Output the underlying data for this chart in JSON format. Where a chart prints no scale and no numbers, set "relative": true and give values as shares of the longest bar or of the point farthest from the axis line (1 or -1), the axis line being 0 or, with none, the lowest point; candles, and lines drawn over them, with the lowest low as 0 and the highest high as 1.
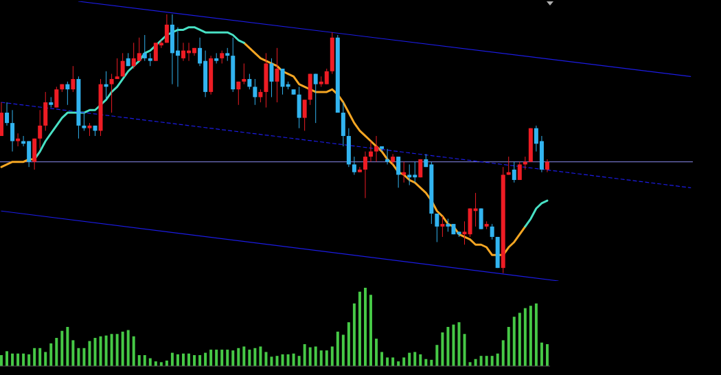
{
  "chart_data": [
    {
      "type": "candlestick",
      "relative": true,
      "categories": [
        null,
        null,
        null,
        null,
        null,
        null,
        null,
        null,
        null,
        null,
        null,
        null,
        null,
        null,
        null,
        null,
        null,
        null,
        null,
        null,
        null,
        null,
        null,
        null,
        null,
        null,
        null,
        null,
        null,
        null,
        null,
        null,
        null,
        null,
        null,
        null,
        null,
        null,
        null,
        null,
        null,
        null,
        null,
        null,
        null,
        null,
        null,
        null,
        null,
        null,
        null,
        null,
        null,
        null,
        null,
        null,
        null,
        null,
        null,
        null,
        null,
        null,
        null,
        null,
        null,
        null,
        null,
        null,
        null,
        null,
        null,
        null,
        null,
        null,
        null,
        null,
        null,
        null,
        null,
        null,
        null,
        null,
        null,
        null,
        null,
        null,
        null,
        null,
        null,
        null,
        null,
        null,
        null,
        null,
        null,
        null,
        null,
        null,
        null,
        null,
        null,
        null,
        null,
        null,
        null,
        null,
        null,
        null,
        null,
        null,
        null,
        null,
        null,
        null,
        null,
        null,
        null,
        null,
        null,
        null,
        null,
        null,
        null,
        null,
        null,
        null
      ],
      "ohlc": [
        [
          0.53,
          0.66,
          0.53,
          0.62
        ],
        [
          0.62,
          0.66,
          0.57,
          0.58
        ],
        [
          0.58,
          0.63,
          0.47,
          0.51
        ],
        [
          0.51,
          0.54,
          0.49,
          0.52
        ],
        [
          0.51,
          0.53,
          0.49,
          0.5
        ],
        [
          0.51,
          0.51,
          0.41,
          0.43
        ],
        [
          0.43,
          0.52,
          0.4,
          0.52
        ],
        [
          0.52,
          0.63,
          0.48,
          0.57
        ],
        [
          0.57,
          0.7,
          0.55,
          0.66
        ],
        [
          0.66,
          0.68,
          0.64,
          0.65
        ],
        [
          0.64,
          0.72,
          0.64,
          0.71
        ],
        [
          0.71,
          0.73,
          0.7,
          0.73
        ],
        [
          0.73,
          0.74,
          0.65,
          0.71
        ],
        [
          0.71,
          0.8,
          0.7,
          0.75
        ],
        [
          0.75,
          0.76,
          0.52,
          0.57
        ],
        [
          0.57,
          0.62,
          0.55,
          0.56
        ],
        [
          0.56,
          0.58,
          0.53,
          0.57
        ],
        [
          0.57,
          0.57,
          0.53,
          0.55
        ],
        [
          0.55,
          0.75,
          0.53,
          0.73
        ],
        [
          0.73,
          0.78,
          0.67,
          0.72
        ],
        [
          0.73,
          0.77,
          0.62,
          0.75
        ],
        [
          0.75,
          0.83,
          0.75,
          0.76
        ],
        [
          0.76,
          0.85,
          0.76,
          0.82
        ],
        [
          0.83,
          0.85,
          0.8,
          0.8
        ],
        [
          0.8,
          0.89,
          0.79,
          0.83
        ],
        [
          0.82,
          0.91,
          0.82,
          0.85
        ],
        [
          0.85,
          0.92,
          0.82,
          0.83
        ],
        [
          0.83,
          0.85,
          0.8,
          0.82
        ],
        [
          0.82,
          0.89,
          0.82,
          0.89
        ],
        [
          0.88,
          0.9,
          0.87,
          0.89
        ],
        [
          0.89,
          1,
          0.89,
          0.96
        ],
        [
          0.96,
          1,
          0.73,
          0.85
        ],
        [
          0.86,
          0.95,
          0.72,
          0.84
        ],
        [
          0.83,
          0.89,
          0.82,
          0.86
        ],
        [
          0.85,
          0.89,
          0.82,
          0.86
        ],
        [
          0.85,
          0.87,
          0.84,
          0.87
        ],
        [
          0.87,
          0.91,
          0.8,
          0.81
        ],
        [
          0.82,
          0.86,
          0.68,
          0.7
        ],
        [
          0.7,
          0.84,
          0.69,
          0.83
        ],
        [
          0.83,
          0.85,
          0.81,
          0.82
        ],
        [
          0.83,
          0.86,
          0.81,
          0.85
        ],
        [
          0.85,
          0.87,
          0.82,
          0.84
        ],
        [
          0.84,
          0.91,
          0.7,
          0.71
        ],
        [
          0.71,
          0.74,
          0.65,
          0.74
        ],
        [
          0.74,
          0.81,
          0.73,
          0.75
        ],
        [
          0.75,
          0.77,
          0.71,
          0.72
        ],
        [
          0.72,
          0.75,
          0.65,
          0.68
        ],
        [
          0.68,
          0.71,
          0.66,
          0.7
        ],
        [
          0.7,
          0.85,
          0.64,
          0.81
        ],
        [
          0.81,
          0.83,
          0.68,
          0.74
        ],
        [
          0.74,
          0.87,
          0.66,
          0.79
        ],
        [
          0.79,
          0.79,
          0.69,
          0.72
        ],
        [
          0.73,
          0.74,
          0.71,
          0.72
        ],
        [
          0.71,
          0.71,
          0.69,
          0.69
        ],
        [
          0.69,
          0.72,
          0.56,
          0.6
        ],
        [
          0.6,
          0.67,
          0.55,
          0.67
        ],
        [
          0.67,
          0.77,
          0.65,
          0.77
        ],
        [
          0.77,
          0.77,
          0.58,
          0.73
        ],
        [
          0.73,
          0.76,
          0.72,
          0.74
        ],
        [
          0.73,
          0.79,
          0.73,
          0.78
        ],
        [
          0.78,
          0.93,
          0.77,
          0.91
        ],
        [
          0.91,
          0.92,
          0.62,
          0.62
        ],
        [
          0.62,
          0.66,
          0.49,
          0.53
        ],
        [
          0.53,
          0.56,
          0.41,
          0.42
        ],
        [
          0.42,
          0.45,
          0.38,
          0.39
        ],
        [
          0.39,
          0.41,
          0.39,
          0.4
        ],
        [
          0.4,
          0.47,
          0.29,
          0.45
        ],
        [
          0.45,
          0.51,
          0.43,
          0.47
        ],
        [
          0.47,
          0.53,
          0.43,
          0.49
        ],
        [
          0.49,
          0.49,
          0.47,
          0.48
        ],
        [
          0.44,
          0.48,
          0.42,
          0.43
        ],
        [
          0.43,
          0.46,
          0.42,
          0.45
        ],
        [
          0.45,
          0.45,
          0.33,
          0.38
        ],
        [
          0.38,
          0.43,
          0.35,
          0.39
        ],
        [
          0.38,
          0.42,
          0.34,
          0.37
        ],
        [
          0.38,
          0.43,
          0.35,
          0.37
        ],
        [
          0.37,
          0.44,
          0.37,
          0.44
        ],
        [
          0.44,
          0.46,
          0.41,
          0.41
        ],
        [
          0.42,
          0.43,
          0.19,
          0.23
        ],
        [
          0.23,
          0.23,
          0.12,
          0.18
        ],
        [
          0.18,
          0.22,
          0.14,
          0.19
        ],
        [
          0.19,
          0.21,
          0.16,
          0.18
        ],
        [
          0.19,
          0.19,
          0.15,
          0.15
        ],
        [
          0.16,
          0.16,
          0.14,
          0.15
        ],
        [
          0.15,
          0.2,
          0.11,
          0.16
        ],
        [
          0.15,
          0.25,
          0.14,
          0.25
        ],
        [
          0.24,
          0.31,
          0.18,
          0.25
        ],
        [
          0.25,
          0.25,
          0.17,
          0.17
        ],
        [
          0.18,
          0.2,
          0.17,
          0.19
        ],
        [
          0.18,
          0.19,
          0.13,
          0.14
        ],
        [
          0.14,
          0.14,
          0.02,
          0.02
        ],
        [
          0.02,
          0.41,
          0,
          0.38
        ],
        [
          0.38,
          0.45,
          0.38,
          0.39
        ],
        [
          0.4,
          0.43,
          0.35,
          0.36
        ],
        [
          0.36,
          0.43,
          0.36,
          0.42
        ],
        [
          0.42,
          0.45,
          0.4,
          0.43
        ],
        [
          0.43,
          0.56,
          0.43,
          0.56
        ],
        [
          0.56,
          0.57,
          0.47,
          0.5
        ],
        [
          0.51,
          0.53,
          0.39,
          0.4
        ],
        [
          0.4,
          0.44,
          0.39,
          0.43
        ],
        null,
        null,
        null,
        null,
        null,
        null,
        null,
        null,
        null,
        null,
        null,
        null,
        null,
        null,
        null,
        null,
        null,
        null,
        null,
        null,
        null,
        null,
        null,
        null,
        null,
        null
      ],
      "colors": [
        "#ee1c24",
        "#32b4f0",
        "#32b4f0",
        "#ee1c24",
        "#32b4f0",
        "#32b4f0",
        "#ee1c24",
        "#ee1c24",
        "#ee1c24",
        "#32b4f0",
        "#ee1c24",
        "#ee1c24",
        "#32b4f0",
        "#ee1c24",
        "#32b4f0",
        "#32b4f0",
        "#ee1c24",
        "#32b4f0",
        "#ee1c24",
        "#32b4f0",
        "#ee1c24",
        "#ee1c24",
        "#ee1c24",
        "#32b4f0",
        "#ee1c24",
        "#ee1c24",
        "#32b4f0",
        "#32b4f0",
        "#ee1c24",
        "#ee1c24",
        "#ee1c24",
        "#32b4f0",
        "#32b4f0",
        "#ee1c24",
        "#ee1c24",
        "#ee1c24",
        "#32b4f0",
        "#32b4f0",
        "#ee1c24",
        "#32b4f0",
        "#ee1c24",
        "#32b4f0",
        "#32b4f0",
        "#ee1c24",
        "#ee1c24",
        "#32b4f0",
        "#32b4f0",
        "#ee1c24",
        "#ee1c24",
        "#32b4f0",
        "#ee1c24",
        "#32b4f0",
        "#32b4f0",
        "#32b4f0",
        "#32b4f0",
        "#ee1c24",
        "#ee1c24",
        "#32b4f0",
        "#ee1c24",
        "#ee1c24",
        "#ee1c24",
        "#32b4f0",
        "#32b4f0",
        "#32b4f0",
        "#32b4f0",
        "#ee1c24",
        "#ee1c24",
        "#ee1c24",
        "#ee1c24",
        "#32b4f0",
        "#32b4f0",
        "#ee1c24",
        "#32b4f0",
        "#ee1c24",
        "#32b4f0",
        "#32b4f0",
        "#ee1c24",
        "#32b4f0",
        "#32b4f0",
        "#32b4f0",
        "#ee1c24",
        "#32b4f0",
        "#32b4f0",
        "#32b4f0",
        "#ee1c24",
        "#ee1c24",
        "#ee1c24",
        "#32b4f0",
        "#ee1c24",
        "#32b4f0",
        "#32b4f0",
        "#ee1c24",
        "#ee1c24",
        "#32b4f0",
        "#ee1c24",
        "#ee1c24",
        "#ee1c24",
        "#32b4f0",
        "#32b4f0",
        "#ee1c24",
        null,
        null,
        null,
        null,
        null,
        null,
        null,
        null,
        null,
        null,
        null,
        null,
        null,
        null,
        null,
        null,
        null,
        null,
        null,
        null,
        null,
        null,
        null,
        null,
        null,
        null
      ],
      "series": [
        {
          "type": "line",
          "color": "#f5a623",
          "values": [
            0.41,
            0.42,
            0.43,
            0.43,
            0.43,
            0.44,
            0.44,
            null,
            null,
            null,
            null,
            null,
            null,
            null,
            null,
            null,
            null,
            null,
            null,
            null,
            null,
            null,
            null,
            null,
            null,
            null,
            null,
            null,
            null,
            null,
            null,
            null,
            null,
            null,
            null,
            null,
            null,
            null,
            null,
            null,
            null,
            null,
            null,
            null,
            0.89,
            0.87,
            0.85,
            0.83,
            0.82,
            0.81,
            0.8,
            0.78,
            0.77,
            0.76,
            0.73,
            0.72,
            0.71,
            0.7,
            0.7,
            0.7,
            0.71,
            0.69,
            0.66,
            0.62,
            0.58,
            0.55,
            0.53,
            0.51,
            0.49,
            0.47,
            0.44,
            0.42,
            0.39,
            0.38,
            0.36,
            0.35,
            0.33,
            0.31,
            0.28,
            0.24,
            0.22,
            0.19,
            0.18,
            0.15,
            0.14,
            0.13,
            0.11,
            0.11,
            0.1,
            0.07,
            0.07,
            0.07,
            0.1,
            0.12,
            0.15,
            0.18,
            null,
            null,
            null,
            null,
            null,
            null,
            null,
            null,
            null,
            null,
            null,
            null,
            null,
            null,
            null,
            null,
            null,
            null,
            null,
            null,
            null,
            null,
            null,
            null,
            null,
            null,
            null,
            null,
            null,
            null
          ]
        },
        {
          "type": "line",
          "color": "#48e0c4",
          "values": [
            null,
            null,
            null,
            null,
            null,
            null,
            0.44,
            0.47,
            0.51,
            0.54,
            0.57,
            0.6,
            0.62,
            0.62,
            0.62,
            0.62,
            0.63,
            0.63,
            0.65,
            0.67,
            0.7,
            0.72,
            0.75,
            0.78,
            0.8,
            0.82,
            0.85,
            0.86,
            0.88,
            0.9,
            0.92,
            0.93,
            0.94,
            0.94,
            0.95,
            0.95,
            0.94,
            0.93,
            0.93,
            0.93,
            0.93,
            0.93,
            0.92,
            0.9,
            0.89,
            null,
            null,
            null,
            null,
            null,
            null,
            null,
            null,
            null,
            null,
            null,
            null,
            null,
            null,
            null,
            null,
            null,
            null,
            null,
            null,
            null,
            null,
            null,
            null,
            null,
            null,
            null,
            null,
            null,
            null,
            null,
            null,
            null,
            null,
            null,
            null,
            null,
            null,
            null,
            null,
            null,
            null,
            null,
            null,
            null,
            null,
            null,
            null,
            null,
            null,
            0.18,
            0.21,
            0.25,
            0.27,
            0.28,
            null,
            null,
            null,
            null,
            null,
            null,
            null,
            null,
            null,
            null,
            null,
            null,
            null,
            null,
            null,
            null,
            null,
            null,
            null,
            null,
            null,
            null,
            null,
            null,
            null,
            null
          ]
        },
        {
          "type": "line",
          "color": "#1c1ce6",
          "values": [
            null,
            null,
            null,
            null,
            null,
            null,
            null,
            null,
            null,
            null,
            null,
            null,
            null,
            null,
            1.05,
            null,
            null,
            null,
            null,
            null,
            null,
            null,
            null,
            null,
            null,
            null,
            null,
            null,
            null,
            null,
            null,
            null,
            null,
            null,
            null,
            null,
            null,
            null,
            null,
            null,
            null,
            null,
            null,
            null,
            null,
            null,
            null,
            null,
            null,
            null,
            null,
            null,
            null,
            null,
            null,
            null,
            null,
            null,
            null,
            null,
            null,
            null,
            null,
            null,
            null,
            null,
            null,
            null,
            null,
            null,
            null,
            null,
            null,
            null,
            null,
            null,
            null,
            null,
            null,
            null,
            null,
            null,
            null,
            null,
            null,
            null,
            null,
            null,
            null,
            null,
            null,
            null,
            null,
            null,
            null,
            null,
            null,
            null,
            null,
            null,
            null,
            null,
            null,
            null,
            null,
            null,
            null,
            null,
            null,
            null,
            null,
            null,
            null,
            null,
            null,
            null,
            null,
            null,
            null,
            null,
            null,
            null,
            null,
            null,
            null,
            0.76
          ]
        },
        {
          "type": "line",
          "color": "#1c1ce6",
          "line_style": "dashed",
          "values": [
            0.66,
            null,
            null,
            null,
            null,
            null,
            null,
            null,
            null,
            null,
            null,
            null,
            null,
            null,
            null,
            null,
            null,
            null,
            null,
            null,
            null,
            null,
            null,
            null,
            null,
            null,
            null,
            null,
            null,
            null,
            null,
            null,
            null,
            null,
            null,
            null,
            null,
            null,
            null,
            null,
            null,
            null,
            null,
            null,
            null,
            null,
            null,
            null,
            null,
            null,
            null,
            null,
            null,
            null,
            null,
            null,
            null,
            null,
            null,
            null,
            null,
            null,
            null,
            null,
            null,
            null,
            null,
            null,
            null,
            null,
            null,
            null,
            null,
            null,
            null,
            null,
            null,
            null,
            null,
            null,
            null,
            null,
            null,
            null,
            null,
            null,
            null,
            null,
            null,
            null,
            null,
            null,
            null,
            null,
            null,
            null,
            null,
            null,
            null,
            null,
            null,
            null,
            null,
            null,
            null,
            null,
            null,
            null,
            null,
            null,
            null,
            null,
            null,
            null,
            null,
            null,
            null,
            null,
            null,
            null,
            null,
            null,
            null,
            null,
            null,
            0.33
          ]
        },
        {
          "type": "line",
          "color": "#1c1ce6",
          "values": [
            0.24,
            null,
            null,
            null,
            null,
            null,
            null,
            null,
            null,
            null,
            null,
            null,
            null,
            null,
            null,
            null,
            null,
            null,
            null,
            null,
            null,
            null,
            null,
            null,
            null,
            null,
            null,
            null,
            null,
            null,
            null,
            null,
            null,
            null,
            null,
            null,
            null,
            null,
            null,
            null,
            null,
            null,
            null,
            null,
            null,
            null,
            null,
            null,
            null,
            null,
            null,
            null,
            null,
            null,
            null,
            null,
            null,
            null,
            null,
            null,
            null,
            null,
            null,
            null,
            null,
            null,
            null,
            null,
            null,
            null,
            null,
            null,
            null,
            null,
            null,
            null,
            null,
            null,
            null,
            null,
            null,
            null,
            null,
            null,
            null,
            null,
            null,
            null,
            null,
            null,
            null,
            null,
            null,
            null,
            null,
            null,
            null,
            null,
            null,
            null,
            null,
            -0.03,
            null,
            null,
            null,
            null,
            null,
            null,
            null,
            null,
            null,
            null,
            null,
            null,
            null,
            null,
            null,
            null,
            null,
            null,
            null,
            null,
            null,
            null,
            null,
            null
          ]
        }
      ],
      "ref_lines": [
        {
          "axis": "y",
          "value": 0.43,
          "color": "#8c8cf0"
        }
      ]
    },
    {
      "type": "bar",
      "relative": true,
      "color": "#46c846",
      "categories": [
        null,
        null,
        null,
        null,
        null,
        null,
        null,
        null,
        null,
        null,
        null,
        null,
        null,
        null,
        null,
        null,
        null,
        null,
        null,
        null,
        null,
        null,
        null,
        null,
        null,
        null,
        null,
        null,
        null,
        null,
        null,
        null,
        null,
        null,
        null,
        null,
        null,
        null,
        null,
        null,
        null,
        null,
        null,
        null,
        null,
        null,
        null,
        null,
        null,
        null,
        null,
        null,
        null,
        null,
        null,
        null,
        null,
        null,
        null,
        null,
        null,
        null,
        null,
        null,
        null,
        null,
        null,
        null,
        null,
        null,
        null,
        null,
        null,
        null,
        null,
        null,
        null,
        null,
        null,
        null,
        null,
        null,
        null,
        null,
        null,
        null,
        null,
        null,
        null,
        null,
        null,
        null,
        null,
        null,
        null,
        null,
        null,
        null,
        null,
        null
      ],
      "values": [
        0.14,
        0.19,
        0.16,
        0.16,
        0.16,
        0.15,
        0.23,
        0.23,
        0.18,
        0.29,
        0.36,
        0.45,
        0.5,
        0.33,
        0.23,
        0.23,
        0.32,
        0.36,
        0.38,
        0.39,
        0.41,
        0.41,
        0.44,
        0.46,
        0.38,
        0.14,
        0.14,
        0.1,
        0.06,
        0.05,
        0.07,
        0.17,
        0.15,
        0.16,
        0.16,
        0.14,
        0.14,
        0.17,
        0.21,
        0.21,
        0.21,
        0.21,
        0.2,
        0.23,
        0.25,
        0.21,
        0.23,
        0.25,
        0.18,
        0.12,
        0.13,
        0.15,
        0.15,
        0.16,
        0.13,
        0.28,
        0.24,
        0.25,
        0.2,
        0.2,
        0.25,
        0.44,
        0.4,
        0.56,
        0.8,
        0.95,
        1,
        0.91,
        0.35,
        0.18,
        0.11,
        0.11,
        0.06,
        0.11,
        0.17,
        0.18,
        0.15,
        0.09,
        0.08,
        0.27,
        0.43,
        0.5,
        0.53,
        0.56,
        0.41,
        0.05,
        0.09,
        0.13,
        0.13,
        0.13,
        0.16,
        0.33,
        0.5,
        0.63,
        0.68,
        0.74,
        0.77,
        0.8,
        0.3,
        0.28
      ]
    }
  ]
}
